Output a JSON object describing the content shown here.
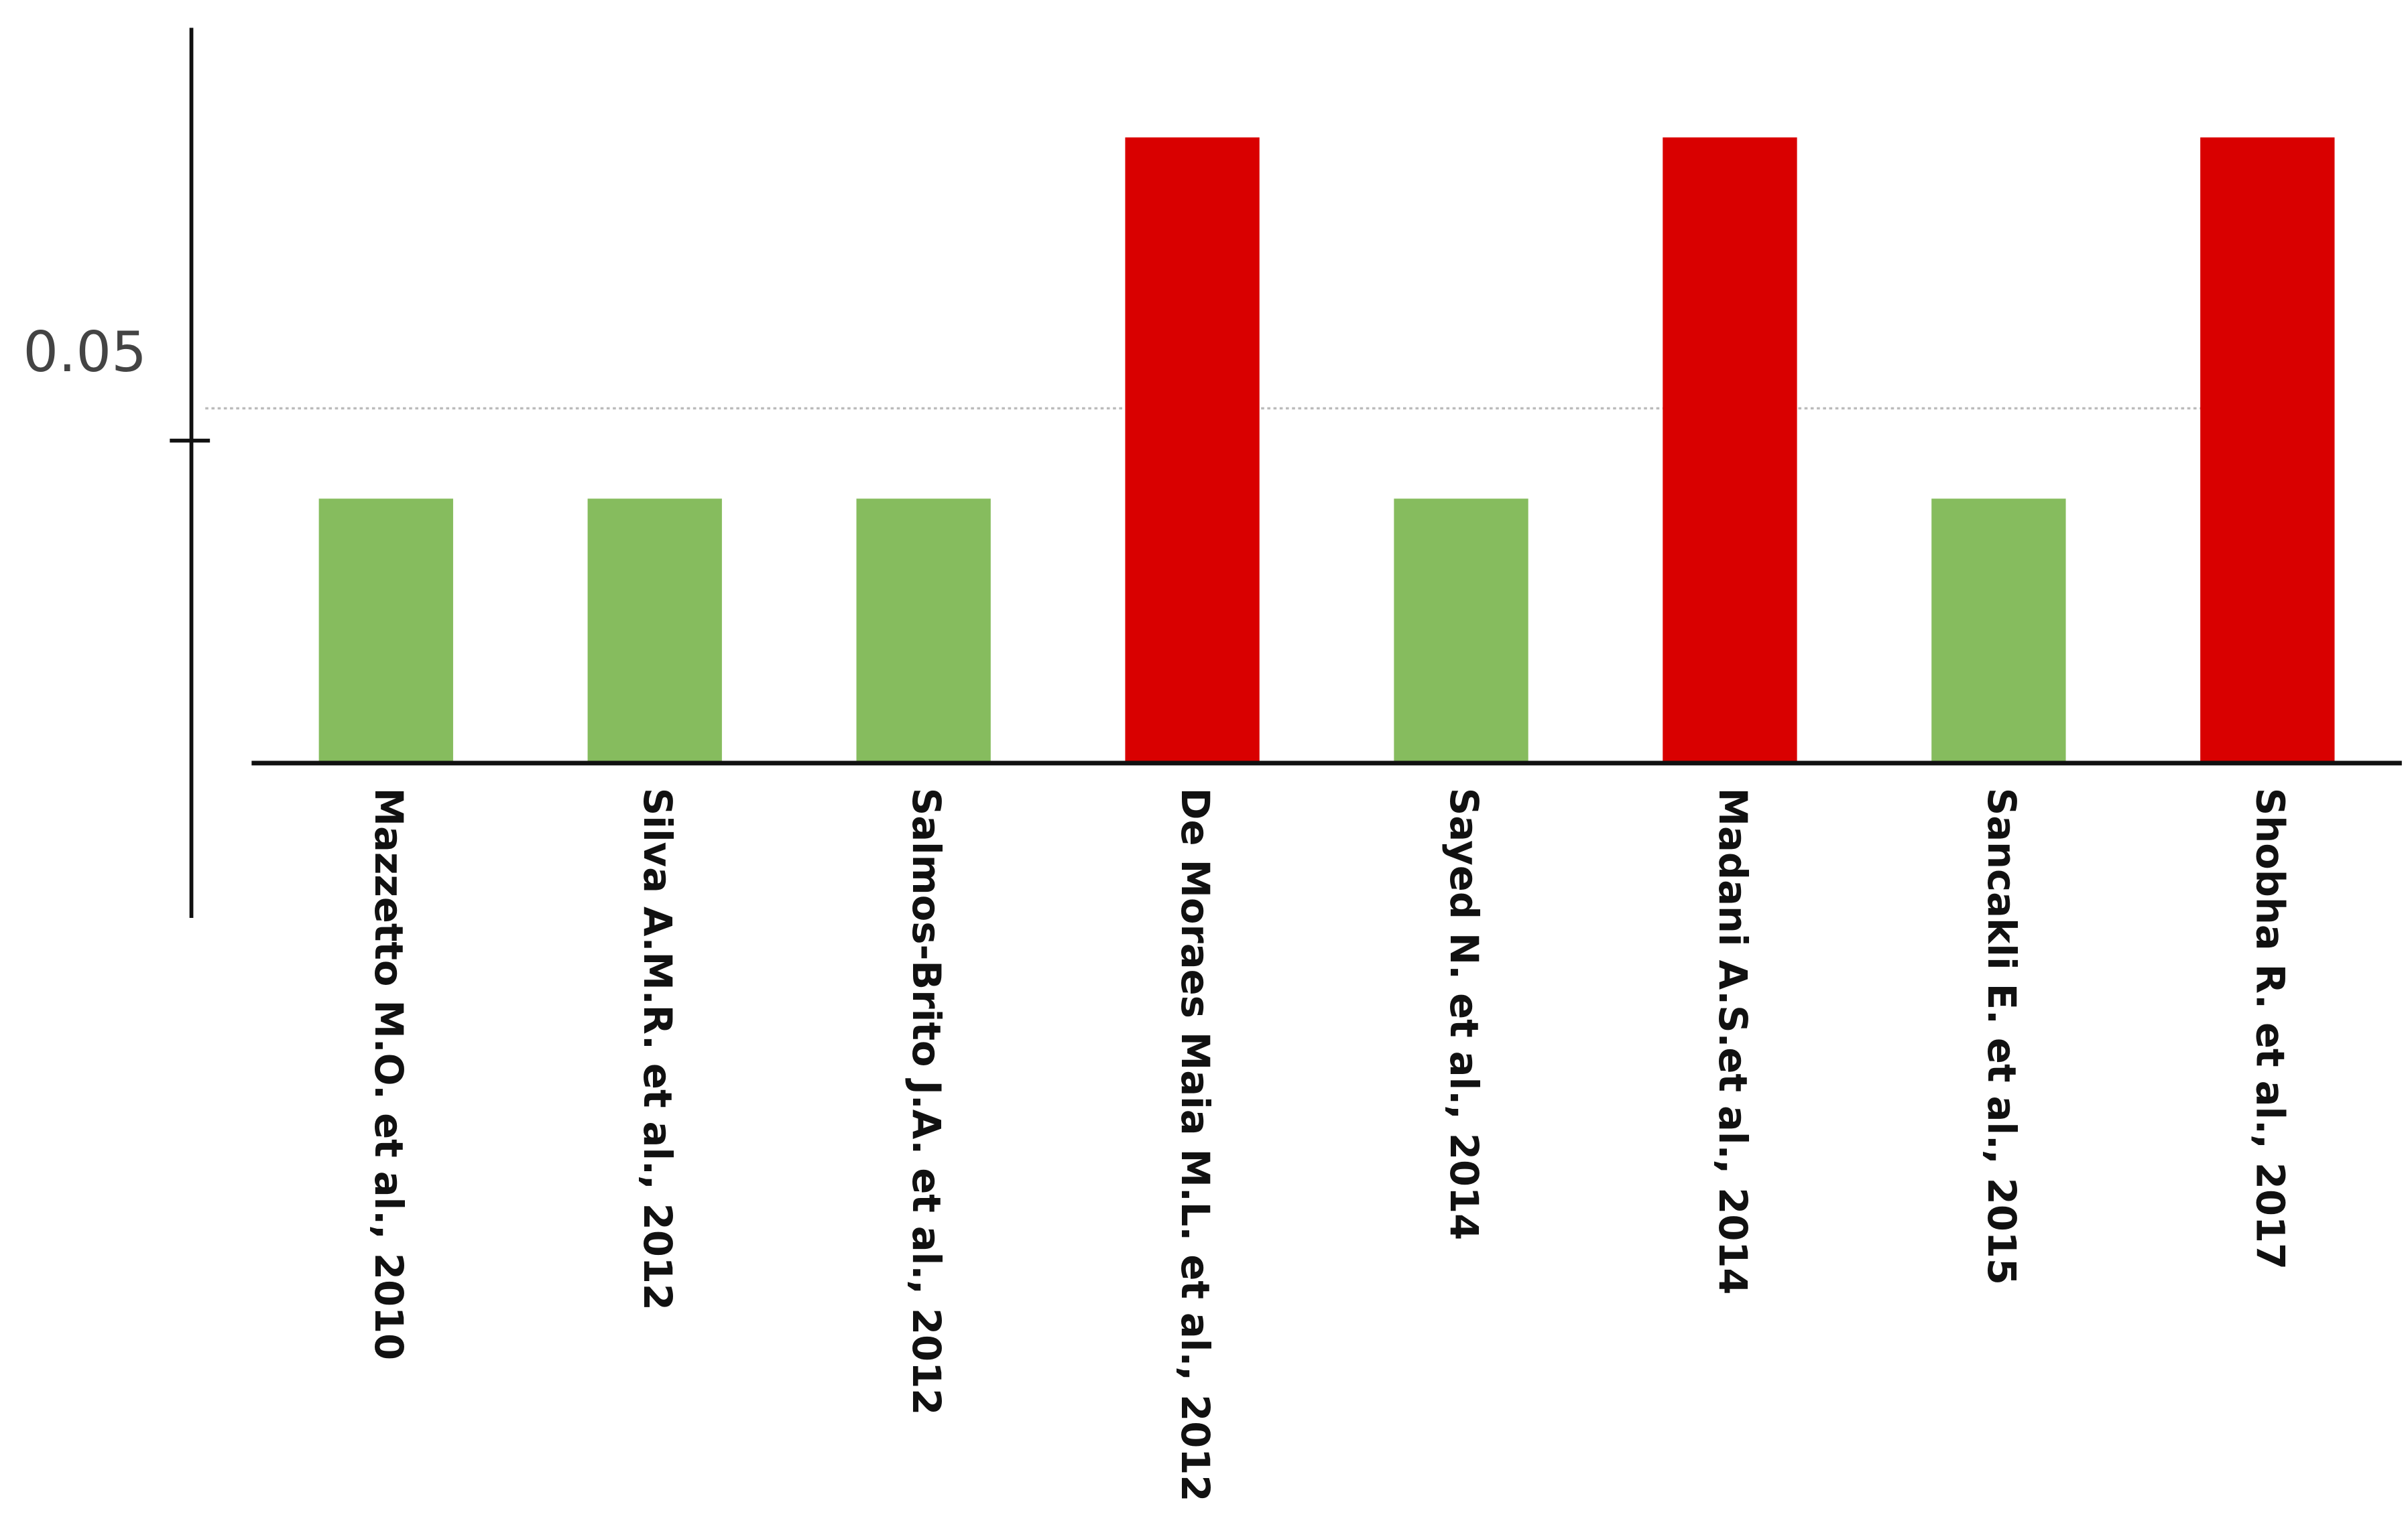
{
  "chart_data": {
    "type": "bar",
    "categories": [
      "Mazzetto M.O. et al., 2010",
      "Silva A.M.R. et al., 2012",
      "Salmos-Brito J.A. et al., 2012",
      "De Moraes Maia M.L. et al., 2012",
      "Sayed N. et al., 2014",
      "Madani A.S.et al., 2014",
      "Sancakli E. et al., 2015",
      "Shobha R. et al., 2017"
    ],
    "values": [
      0.041,
      0.041,
      0.041,
      0.097,
      0.041,
      0.097,
      0.041,
      0.097
    ],
    "colors": [
      "#86bc5e",
      "#86bc5e",
      "#86bc5e",
      "#d90000",
      "#86bc5e",
      "#d90000",
      "#86bc5e",
      "#d90000"
    ],
    "reference_line": 0.055,
    "ylim": [
      -0.024,
      0.114
    ],
    "yticks": [
      0.05
    ]
  }
}
